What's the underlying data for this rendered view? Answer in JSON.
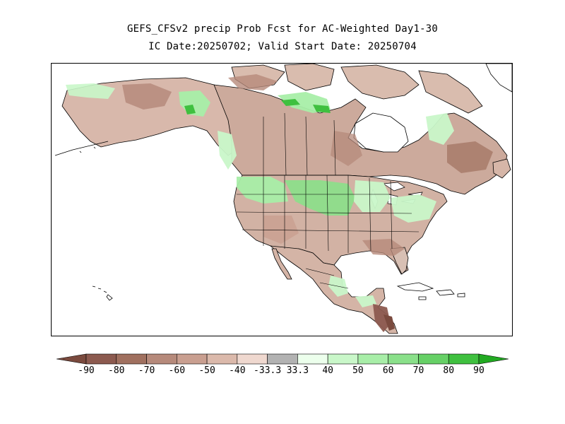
{
  "title_line1": "GEFS_CFSv2 precip Prob Fcst for AC-Weighted Day1-30",
  "title_line2": "IC Date:20250702; Valid Start Date: 20250704",
  "colorbar": {
    "left_arrow_color": "#7a4a3e",
    "right_arrow_color": "#22aa22",
    "bins": [
      {
        "color": "#8c5a4f"
      },
      {
        "color": "#a0705f"
      },
      {
        "color": "#b68a7b"
      },
      {
        "color": "#c99f90"
      },
      {
        "color": "#dbb9ab"
      },
      {
        "color": "#efd8cf"
      },
      {
        "color": "#b2b2b2"
      },
      {
        "color": "#ecffec"
      },
      {
        "color": "#c9f7c9"
      },
      {
        "color": "#a8eea8"
      },
      {
        "color": "#8ae08a"
      },
      {
        "color": "#66d066"
      },
      {
        "color": "#3fc03f"
      }
    ],
    "labels": [
      "-90",
      "-80",
      "-70",
      "-60",
      "-50",
      "-40",
      "-33.3",
      "33.3",
      "40",
      "50",
      "60",
      "70",
      "80",
      "90"
    ]
  },
  "map": {
    "region": "North America",
    "ocean_color": "#ffffff",
    "below_normal_color": "#cfab9f",
    "above_normal_color": "#bdf0bd",
    "strong_above_color": "#3fc03f",
    "strong_below_color": "#8c5a4f"
  }
}
